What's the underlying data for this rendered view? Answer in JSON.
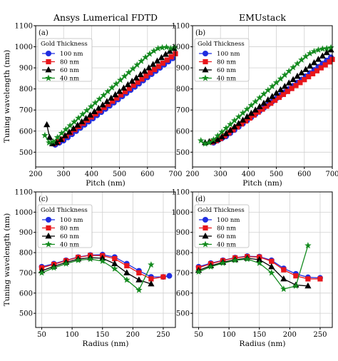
{
  "chart_data": [
    {
      "type": "line",
      "panel_label": "(a)",
      "title": "Ansys Lumerical FDTD",
      "xlabel": "Pitch (nm)",
      "ylabel": "Tuning wavelength (nm)",
      "xlim": [
        200,
        700
      ],
      "ylim": [
        430,
        1100
      ],
      "xticks": [
        200,
        300,
        400,
        500,
        600,
        700
      ],
      "yticks": [
        500,
        600,
        700,
        800,
        900,
        1000,
        1100
      ],
      "grid": true,
      "legend": {
        "title": "Gold Thickness",
        "placement": "top-left"
      },
      "series": [
        {
          "name": "100 nm",
          "color": "#1f2de0",
          "marker": "circle",
          "x": [
            270,
            285,
            300,
            315,
            330,
            345,
            360,
            375,
            390,
            405,
            420,
            435,
            450,
            465,
            480,
            495,
            510,
            525,
            540,
            555,
            570,
            585,
            600,
            615,
            630,
            645,
            660,
            675,
            690
          ],
          "y": [
            535,
            545,
            555,
            570,
            585,
            600,
            615,
            630,
            645,
            660,
            675,
            690,
            705,
            720,
            735,
            750,
            765,
            780,
            795,
            810,
            825,
            840,
            855,
            870,
            885,
            900,
            915,
            930,
            945
          ]
        },
        {
          "name": "80 nm",
          "color": "#e8161b",
          "marker": "square",
          "x": [
            265,
            280,
            295,
            310,
            325,
            340,
            355,
            370,
            385,
            400,
            415,
            430,
            445,
            460,
            475,
            490,
            505,
            520,
            535,
            550,
            565,
            580,
            595,
            610,
            625,
            640,
            655,
            670,
            685,
            700
          ],
          "y": [
            540,
            550,
            562,
            577,
            592,
            607,
            622,
            637,
            652,
            667,
            682,
            697,
            712,
            727,
            742,
            757,
            772,
            787,
            802,
            817,
            832,
            847,
            862,
            877,
            892,
            907,
            922,
            937,
            952,
            967
          ]
        },
        {
          "name": "60 nm",
          "color": "#000000",
          "marker": "triangle",
          "x": [
            240,
            250,
            260,
            275,
            290,
            305,
            320,
            335,
            350,
            365,
            380,
            395,
            410,
            425,
            440,
            455,
            470,
            485,
            500,
            515,
            530,
            545,
            560,
            575,
            590,
            605,
            620,
            635,
            650,
            665,
            680,
            695
          ],
          "y": [
            630,
            570,
            540,
            545,
            560,
            578,
            595,
            612,
            628,
            644,
            660,
            676,
            692,
            708,
            724,
            740,
            756,
            772,
            788,
            804,
            820,
            836,
            852,
            868,
            884,
            900,
            916,
            932,
            948,
            964,
            978,
            992
          ]
        },
        {
          "name": "40 nm",
          "color": "#138a1e",
          "marker": "star",
          "x": [
            233,
            248,
            263,
            278,
            293,
            308,
            323,
            338,
            353,
            368,
            383,
            398,
            413,
            428,
            443,
            458,
            473,
            488,
            503,
            518,
            533,
            548,
            563,
            578,
            593,
            608,
            623,
            638,
            653,
            668,
            683,
            698
          ],
          "y": [
            580,
            545,
            550,
            570,
            590,
            608,
            626,
            644,
            662,
            680,
            698,
            716,
            734,
            752,
            770,
            788,
            806,
            824,
            842,
            860,
            878,
            896,
            914,
            932,
            950,
            966,
            980,
            992,
            996,
            998,
            992,
            997
          ]
        }
      ]
    },
    {
      "type": "line",
      "panel_label": "(b)",
      "title": "EMUstack",
      "xlabel": "Pitch (nm)",
      "ylabel": "",
      "xlim": [
        200,
        700
      ],
      "ylim": [
        430,
        1100
      ],
      "xticks": [
        200,
        300,
        400,
        500,
        600,
        700
      ],
      "yticks": [
        500,
        600,
        700,
        800,
        900,
        1000,
        1100
      ],
      "grid": true,
      "legend": {
        "title": "Gold Thickness",
        "placement": "top-left"
      },
      "series": [
        {
          "name": "100 nm",
          "color": "#1f2de0",
          "marker": "circle",
          "x": [
            275,
            290,
            305,
            320,
            335,
            350,
            365,
            380,
            395,
            410,
            425,
            440,
            455,
            470,
            485,
            500,
            515,
            530,
            545,
            560,
            575,
            590,
            605,
            620,
            635,
            650,
            665,
            680,
            695
          ],
          "y": [
            545,
            555,
            565,
            575,
            590,
            605,
            620,
            635,
            650,
            665,
            680,
            695,
            710,
            725,
            740,
            755,
            770,
            785,
            800,
            815,
            830,
            845,
            860,
            875,
            890,
            905,
            920,
            935,
            950
          ]
        },
        {
          "name": "80 nm",
          "color": "#e8161b",
          "marker": "square",
          "x": [
            270,
            285,
            300,
            315,
            330,
            345,
            360,
            375,
            390,
            405,
            420,
            435,
            450,
            465,
            480,
            495,
            510,
            525,
            540,
            555,
            570,
            585,
            600,
            615,
            630,
            645,
            660,
            675,
            690,
            700
          ],
          "y": [
            548,
            555,
            565,
            578,
            592,
            606,
            620,
            634,
            648,
            662,
            676,
            690,
            704,
            718,
            732,
            746,
            760,
            774,
            788,
            802,
            816,
            830,
            844,
            858,
            872,
            886,
            900,
            914,
            928,
            940
          ]
        },
        {
          "name": "60 nm",
          "color": "#000000",
          "marker": "triangle",
          "x": [
            245,
            260,
            275,
            290,
            305,
            320,
            335,
            350,
            365,
            380,
            395,
            410,
            425,
            440,
            455,
            470,
            485,
            500,
            515,
            530,
            545,
            560,
            575,
            590,
            605,
            620,
            635,
            650,
            665,
            680,
            695
          ],
          "y": [
            545,
            550,
            552,
            560,
            572,
            588,
            604,
            620,
            636,
            652,
            668,
            684,
            700,
            716,
            732,
            748,
            764,
            780,
            796,
            812,
            828,
            844,
            860,
            876,
            892,
            908,
            924,
            940,
            956,
            972,
            985
          ]
        },
        {
          "name": "40 nm",
          "color": "#138a1e",
          "marker": "star",
          "x": [
            230,
            245,
            260,
            275,
            290,
            305,
            320,
            335,
            350,
            365,
            380,
            395,
            410,
            425,
            440,
            455,
            470,
            485,
            500,
            515,
            530,
            545,
            560,
            575,
            590,
            605,
            620,
            635,
            650,
            665,
            680,
            695
          ],
          "y": [
            555,
            540,
            545,
            560,
            578,
            596,
            614,
            632,
            650,
            668,
            686,
            704,
            722,
            740,
            758,
            776,
            794,
            812,
            830,
            848,
            866,
            884,
            902,
            920,
            938,
            954,
            968,
            978,
            985,
            990,
            992,
            996
          ]
        }
      ]
    },
    {
      "type": "line",
      "panel_label": "(c)",
      "title": "",
      "xlabel": "Radius (nm)",
      "ylabel": "Tuning wavelength (nm)",
      "xlim": [
        40,
        270
      ],
      "ylim": [
        430,
        1100
      ],
      "xticks": [
        50,
        100,
        150,
        200,
        250
      ],
      "yticks": [
        500,
        600,
        700,
        800,
        900,
        1000,
        1100
      ],
      "grid": true,
      "legend": {
        "title": "Gold Thickness",
        "placement": "top-left"
      },
      "series": [
        {
          "name": "100 nm",
          "color": "#1f2de0",
          "marker": "circle",
          "x": [
            50,
            70,
            90,
            110,
            130,
            150,
            170,
            190,
            210,
            230,
            250,
            260
          ],
          "y": [
            730,
            745,
            762,
            778,
            788,
            790,
            778,
            745,
            710,
            680,
            680,
            685
          ]
        },
        {
          "name": "80 nm",
          "color": "#e8161b",
          "marker": "square",
          "x": [
            50,
            70,
            90,
            110,
            130,
            150,
            170,
            190,
            210,
            230,
            250
          ],
          "y": [
            725,
            742,
            760,
            777,
            786,
            785,
            770,
            735,
            700,
            670,
            680
          ]
        },
        {
          "name": "60 nm",
          "color": "#000000",
          "marker": "triangle",
          "x": [
            50,
            70,
            90,
            110,
            130,
            150,
            170,
            190,
            210,
            230
          ],
          "y": [
            710,
            732,
            752,
            768,
            775,
            772,
            745,
            700,
            665,
            645
          ]
        },
        {
          "name": "40 nm",
          "color": "#138a1e",
          "marker": "star",
          "x": [
            50,
            70,
            90,
            110,
            130,
            150,
            170,
            190,
            210,
            230
          ],
          "y": [
            700,
            725,
            745,
            762,
            768,
            758,
            720,
            665,
            615,
            740
          ]
        }
      ]
    },
    {
      "type": "line",
      "panel_label": "(d)",
      "title": "",
      "xlabel": "Radius (nm)",
      "ylabel": "",
      "xlim": [
        40,
        270
      ],
      "ylim": [
        430,
        1100
      ],
      "xticks": [
        50,
        100,
        150,
        200,
        250
      ],
      "yticks": [
        500,
        600,
        700,
        800,
        900,
        1000,
        1100
      ],
      "grid": true,
      "legend": {
        "title": "Gold Thickness",
        "placement": "top-left"
      },
      "series": [
        {
          "name": "100 nm",
          "color": "#1f2de0",
          "marker": "circle",
          "x": [
            50,
            70,
            90,
            110,
            130,
            150,
            170,
            190,
            210,
            230,
            250
          ],
          "y": [
            730,
            748,
            762,
            775,
            782,
            780,
            762,
            722,
            695,
            678,
            675
          ]
        },
        {
          "name": "80 nm",
          "color": "#e8161b",
          "marker": "square",
          "x": [
            50,
            70,
            90,
            110,
            130,
            150,
            170,
            190,
            210,
            230,
            250
          ],
          "y": [
            725,
            745,
            760,
            774,
            780,
            778,
            757,
            715,
            685,
            670,
            670
          ]
        },
        {
          "name": "60 nm",
          "color": "#000000",
          "marker": "triangle",
          "x": [
            50,
            70,
            90,
            110,
            130,
            150,
            170,
            190,
            210,
            230
          ],
          "y": [
            712,
            735,
            752,
            765,
            772,
            765,
            730,
            670,
            640,
            635
          ]
        },
        {
          "name": "40 nm",
          "color": "#138a1e",
          "marker": "star",
          "x": [
            50,
            70,
            90,
            110,
            130,
            150,
            170,
            190,
            210,
            230
          ],
          "y": [
            705,
            730,
            748,
            762,
            768,
            748,
            700,
            620,
            635,
            835
          ]
        }
      ]
    }
  ]
}
